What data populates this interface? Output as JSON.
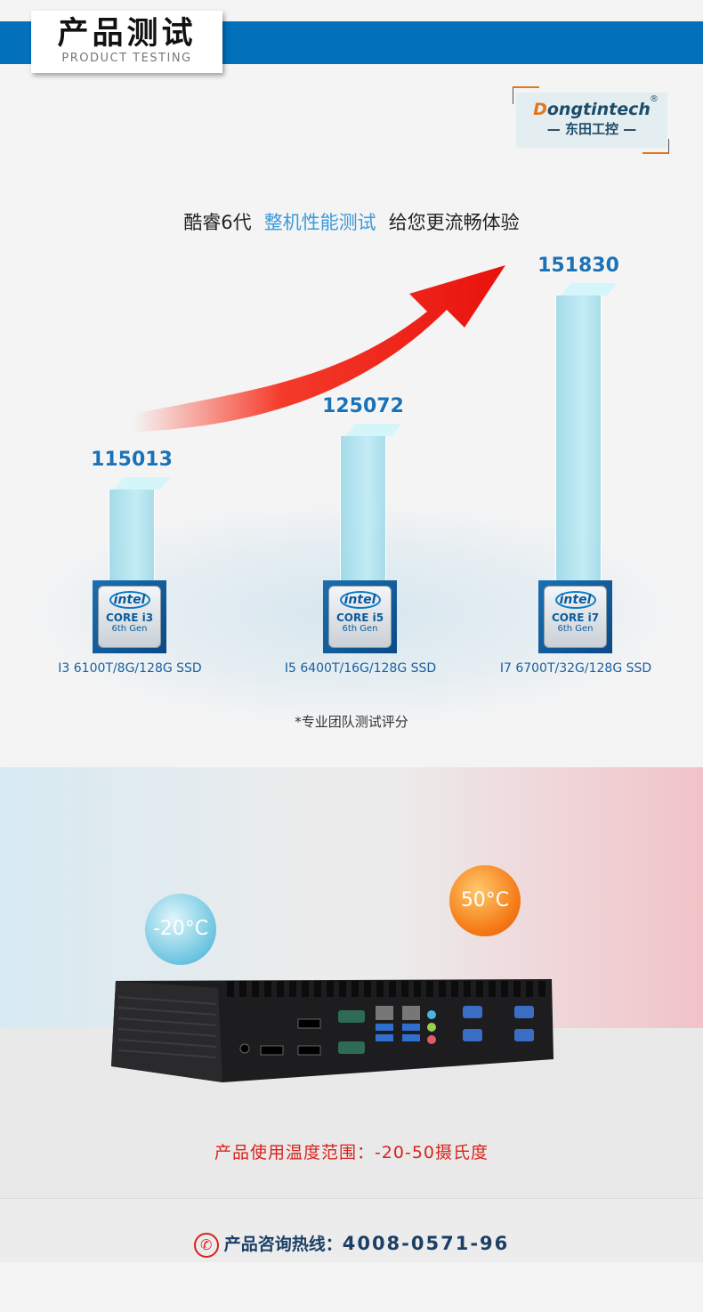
{
  "header": {
    "title": "产品测试",
    "subtitle": "PRODUCT TESTING",
    "brand_color": "#0270bb"
  },
  "logo": {
    "en_initial": "D",
    "en_rest": "ongtintech",
    "cn": "— 东田工控 —",
    "reg": "®"
  },
  "headline": {
    "part1": "酷睿6代",
    "highlight": "整机性能测试",
    "part2": "给您更流畅体验"
  },
  "chart_data": {
    "type": "bar",
    "categories": [
      "I3 6100T/8G/128G SSD",
      "I5 6400T/16G/128G SSD",
      "I7 6700T/32G/128G SSD"
    ],
    "values": [
      115013,
      125072,
      151830
    ],
    "value_labels": [
      "115013",
      "125072",
      "151830"
    ],
    "chips": [
      {
        "brand": "intel",
        "line": "CORE i3",
        "gen": "6th Gen"
      },
      {
        "brand": "intel",
        "line": "CORE i5",
        "gen": "6th Gen"
      },
      {
        "brand": "intel",
        "line": "CORE i7",
        "gen": "6th Gen"
      }
    ],
    "note": "*专业团队测试评分",
    "bar_color": "#a6dde9"
  },
  "temperature": {
    "low": "-20°C",
    "high": "50°C",
    "range_text": "产品使用温度范围：-20-50摄氏度"
  },
  "footer": {
    "label": "产品咨询热线：",
    "phone": "4008-0571-96",
    "icon": "phone-icon"
  }
}
